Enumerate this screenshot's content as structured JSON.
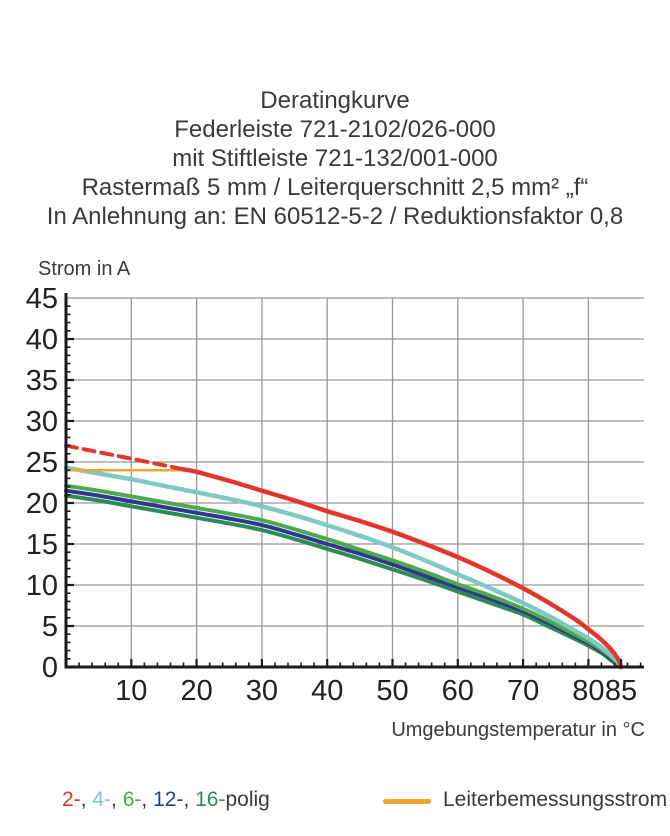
{
  "title": {
    "lines": [
      "Deratingkurve",
      "Federleiste 721-2102/026-000",
      "mit Stiftleiste 721-132/001-000",
      "Rastermaß 5 mm / Leiterquerschnitt 2,5 mm² „f“",
      "In Anlehnung an: EN 60512-5-2 / Reduktionsfaktor 0,8"
    ]
  },
  "chart_data": {
    "type": "line",
    "title": "Deratingkurve Federleiste 721-2102/026-000 mit Stiftleiste 721-132/001-000",
    "ylabel": "Strom in A",
    "xlabel": "Umgebungstemperatur in °C",
    "xlim": [
      0,
      88.5
    ],
    "ylim": [
      0,
      45
    ],
    "x_ticks_labeled": [
      10,
      20,
      30,
      40,
      50,
      60,
      70,
      80,
      85
    ],
    "x_minor_tick_step": 2,
    "y_ticks_labeled": [
      0,
      5,
      10,
      15,
      20,
      25,
      30,
      35,
      40,
      45
    ],
    "y_minor_tick_step": 1,
    "grid": true,
    "grid_color": "#989898",
    "axis_color": "#1b1b1b",
    "series": [
      {
        "name": "16-polig",
        "color": "#2e8b57",
        "width": 4,
        "dash": null,
        "points": [
          [
            0,
            20.9
          ],
          [
            5,
            20.3
          ],
          [
            10,
            19.6
          ],
          [
            15,
            18.9
          ],
          [
            20,
            18.2
          ],
          [
            25,
            17.5
          ],
          [
            30,
            16.7
          ],
          [
            35,
            15.6
          ],
          [
            40,
            14.4
          ],
          [
            45,
            13.2
          ],
          [
            50,
            11.9
          ],
          [
            55,
            10.6
          ],
          [
            60,
            9.2
          ],
          [
            65,
            7.8
          ],
          [
            70,
            6.4
          ],
          [
            74,
            4.9
          ],
          [
            78,
            3.4
          ],
          [
            80,
            2.6
          ],
          [
            82,
            1.7
          ],
          [
            83.5,
            0.8
          ],
          [
            84.6,
            0.2
          ],
          [
            85,
            0
          ]
        ]
      },
      {
        "name": "12-polig",
        "color": "#2d3a8c",
        "width": 4,
        "dash": null,
        "points": [
          [
            0,
            21.5
          ],
          [
            5,
            20.9
          ],
          [
            10,
            20.2
          ],
          [
            15,
            19.5
          ],
          [
            20,
            18.8
          ],
          [
            25,
            18.1
          ],
          [
            30,
            17.3
          ],
          [
            35,
            16.2
          ],
          [
            40,
            15.0
          ],
          [
            45,
            13.8
          ],
          [
            50,
            12.5
          ],
          [
            55,
            11.1
          ],
          [
            60,
            9.7
          ],
          [
            65,
            8.3
          ],
          [
            70,
            6.8
          ],
          [
            74,
            5.3
          ],
          [
            78,
            3.7
          ],
          [
            80,
            2.9
          ],
          [
            82,
            1.9
          ],
          [
            83.5,
            1.0
          ],
          [
            84.6,
            0.3
          ],
          [
            85,
            0
          ]
        ]
      },
      {
        "name": "6-polig",
        "color": "#4ea84e",
        "width": 4,
        "dash": null,
        "points": [
          [
            0,
            22.1
          ],
          [
            5,
            21.5
          ],
          [
            10,
            20.8
          ],
          [
            15,
            20.1
          ],
          [
            20,
            19.4
          ],
          [
            25,
            18.7
          ],
          [
            30,
            17.9
          ],
          [
            35,
            16.8
          ],
          [
            40,
            15.6
          ],
          [
            45,
            14.3
          ],
          [
            50,
            13.0
          ],
          [
            55,
            11.6
          ],
          [
            60,
            10.1
          ],
          [
            65,
            8.7
          ],
          [
            70,
            7.1
          ],
          [
            74,
            5.6
          ],
          [
            78,
            3.9
          ],
          [
            80,
            3.1
          ],
          [
            82,
            2.1
          ],
          [
            83.5,
            1.2
          ],
          [
            84.6,
            0.4
          ],
          [
            85,
            0
          ]
        ]
      },
      {
        "name": "4-polig",
        "color": "#7ec9c6",
        "width": 4.5,
        "dash": null,
        "points": [
          [
            0,
            24.3
          ],
          [
            5,
            23.6
          ],
          [
            10,
            22.9
          ],
          [
            15,
            22.1
          ],
          [
            20,
            21.3
          ],
          [
            25,
            20.5
          ],
          [
            30,
            19.6
          ],
          [
            35,
            18.5
          ],
          [
            40,
            17.3
          ],
          [
            45,
            16.0
          ],
          [
            50,
            14.6
          ],
          [
            55,
            13.0
          ],
          [
            60,
            11.3
          ],
          [
            65,
            9.6
          ],
          [
            70,
            7.8
          ],
          [
            74,
            6.2
          ],
          [
            78,
            4.4
          ],
          [
            80,
            3.5
          ],
          [
            82,
            2.4
          ],
          [
            83.5,
            1.4
          ],
          [
            84.7,
            0.4
          ],
          [
            85,
            0
          ]
        ]
      },
      {
        "name": "Leiterbemessungsstrom",
        "color": "#f2a331",
        "width": 2.5,
        "dash": null,
        "points": [
          [
            0,
            24
          ],
          [
            18,
            24
          ]
        ]
      },
      {
        "name": "2-polig gestrichelt",
        "color": "#e3352b",
        "width": 4,
        "dash": [
          11,
          7
        ],
        "points": [
          [
            0,
            27
          ],
          [
            5,
            26.2
          ],
          [
            10,
            25.4
          ],
          [
            15,
            24.6
          ],
          [
            18,
            24.1
          ]
        ]
      },
      {
        "name": "2-polig",
        "color": "#e3352b",
        "width": 4.5,
        "dash": null,
        "points": [
          [
            18,
            24.1
          ],
          [
            20,
            23.8
          ],
          [
            25,
            22.7
          ],
          [
            30,
            21.5
          ],
          [
            35,
            20.3
          ],
          [
            40,
            19.0
          ],
          [
            45,
            17.8
          ],
          [
            50,
            16.5
          ],
          [
            55,
            15.0
          ],
          [
            60,
            13.4
          ],
          [
            65,
            11.6
          ],
          [
            70,
            9.6
          ],
          [
            74,
            7.8
          ],
          [
            78,
            5.8
          ],
          [
            80,
            4.6
          ],
          [
            82,
            3.3
          ],
          [
            83.5,
            2.1
          ],
          [
            84.6,
            0.9
          ],
          [
            85,
            0
          ]
        ]
      }
    ]
  },
  "legend": {
    "poles": [
      {
        "text": "2-",
        "color": "#e3352b"
      },
      {
        "text": ", ",
        "color": "#3a3a3a"
      },
      {
        "text": "4-",
        "color": "#7ec9c6"
      },
      {
        "text": ", ",
        "color": "#3a3a3a"
      },
      {
        "text": "6-",
        "color": "#4ea84e"
      },
      {
        "text": ", ",
        "color": "#3a3a3a"
      },
      {
        "text": "12-",
        "color": "#2d3a8c"
      },
      {
        "text": ", ",
        "color": "#3a3a3a"
      },
      {
        "text": "16-",
        "color": "#2e8b57"
      },
      {
        "text": "polig",
        "color": "#3a3a3a"
      }
    ],
    "rated": {
      "label": "Leiterbemessungsstrom",
      "swatch_color": "#f2a331"
    }
  }
}
